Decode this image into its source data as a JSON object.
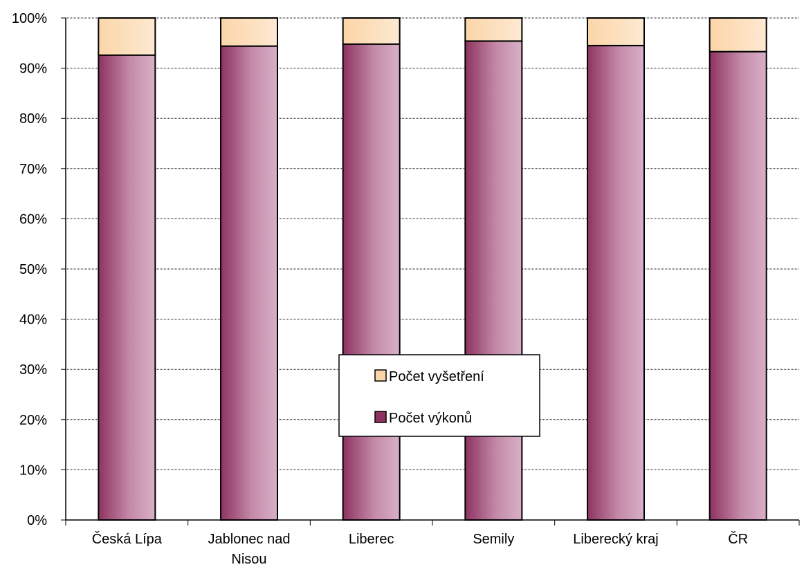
{
  "chart_data": {
    "type": "bar",
    "stacked": true,
    "percent_stacked": true,
    "categories": [
      "Česká Lípa",
      "Jablonec nad Nisou",
      "Liberec",
      "Semily",
      "Liberecký kraj",
      "ČR"
    ],
    "category_lines": [
      [
        "Česká Lípa"
      ],
      [
        "Jablonec nad",
        "Nisou"
      ],
      [
        "Liberec"
      ],
      [
        "Semily"
      ],
      [
        "Liberecký kraj"
      ],
      [
        "ČR"
      ]
    ],
    "series": [
      {
        "name": "Počet výkonů",
        "values": [
          92.6,
          94.4,
          94.8,
          95.4,
          94.5,
          93.3
        ],
        "color": "#8e3361",
        "color_light": "#d8b0c8"
      },
      {
        "name": "Počet vyšetření",
        "values": [
          7.4,
          5.6,
          5.2,
          4.6,
          5.5,
          6.7
        ],
        "color": "#fbd5a8",
        "color_light": "#fde9d2"
      }
    ],
    "ylim": [
      0,
      100
    ],
    "yticks": [
      "0%",
      "10%",
      "20%",
      "30%",
      "40%",
      "50%",
      "60%",
      "70%",
      "80%",
      "90%",
      "100%"
    ],
    "grid": true,
    "legend_position": "center",
    "legend_order": [
      "Počet vyšetření",
      "Počet výkonů"
    ],
    "title": "",
    "xlabel": "",
    "ylabel": ""
  }
}
